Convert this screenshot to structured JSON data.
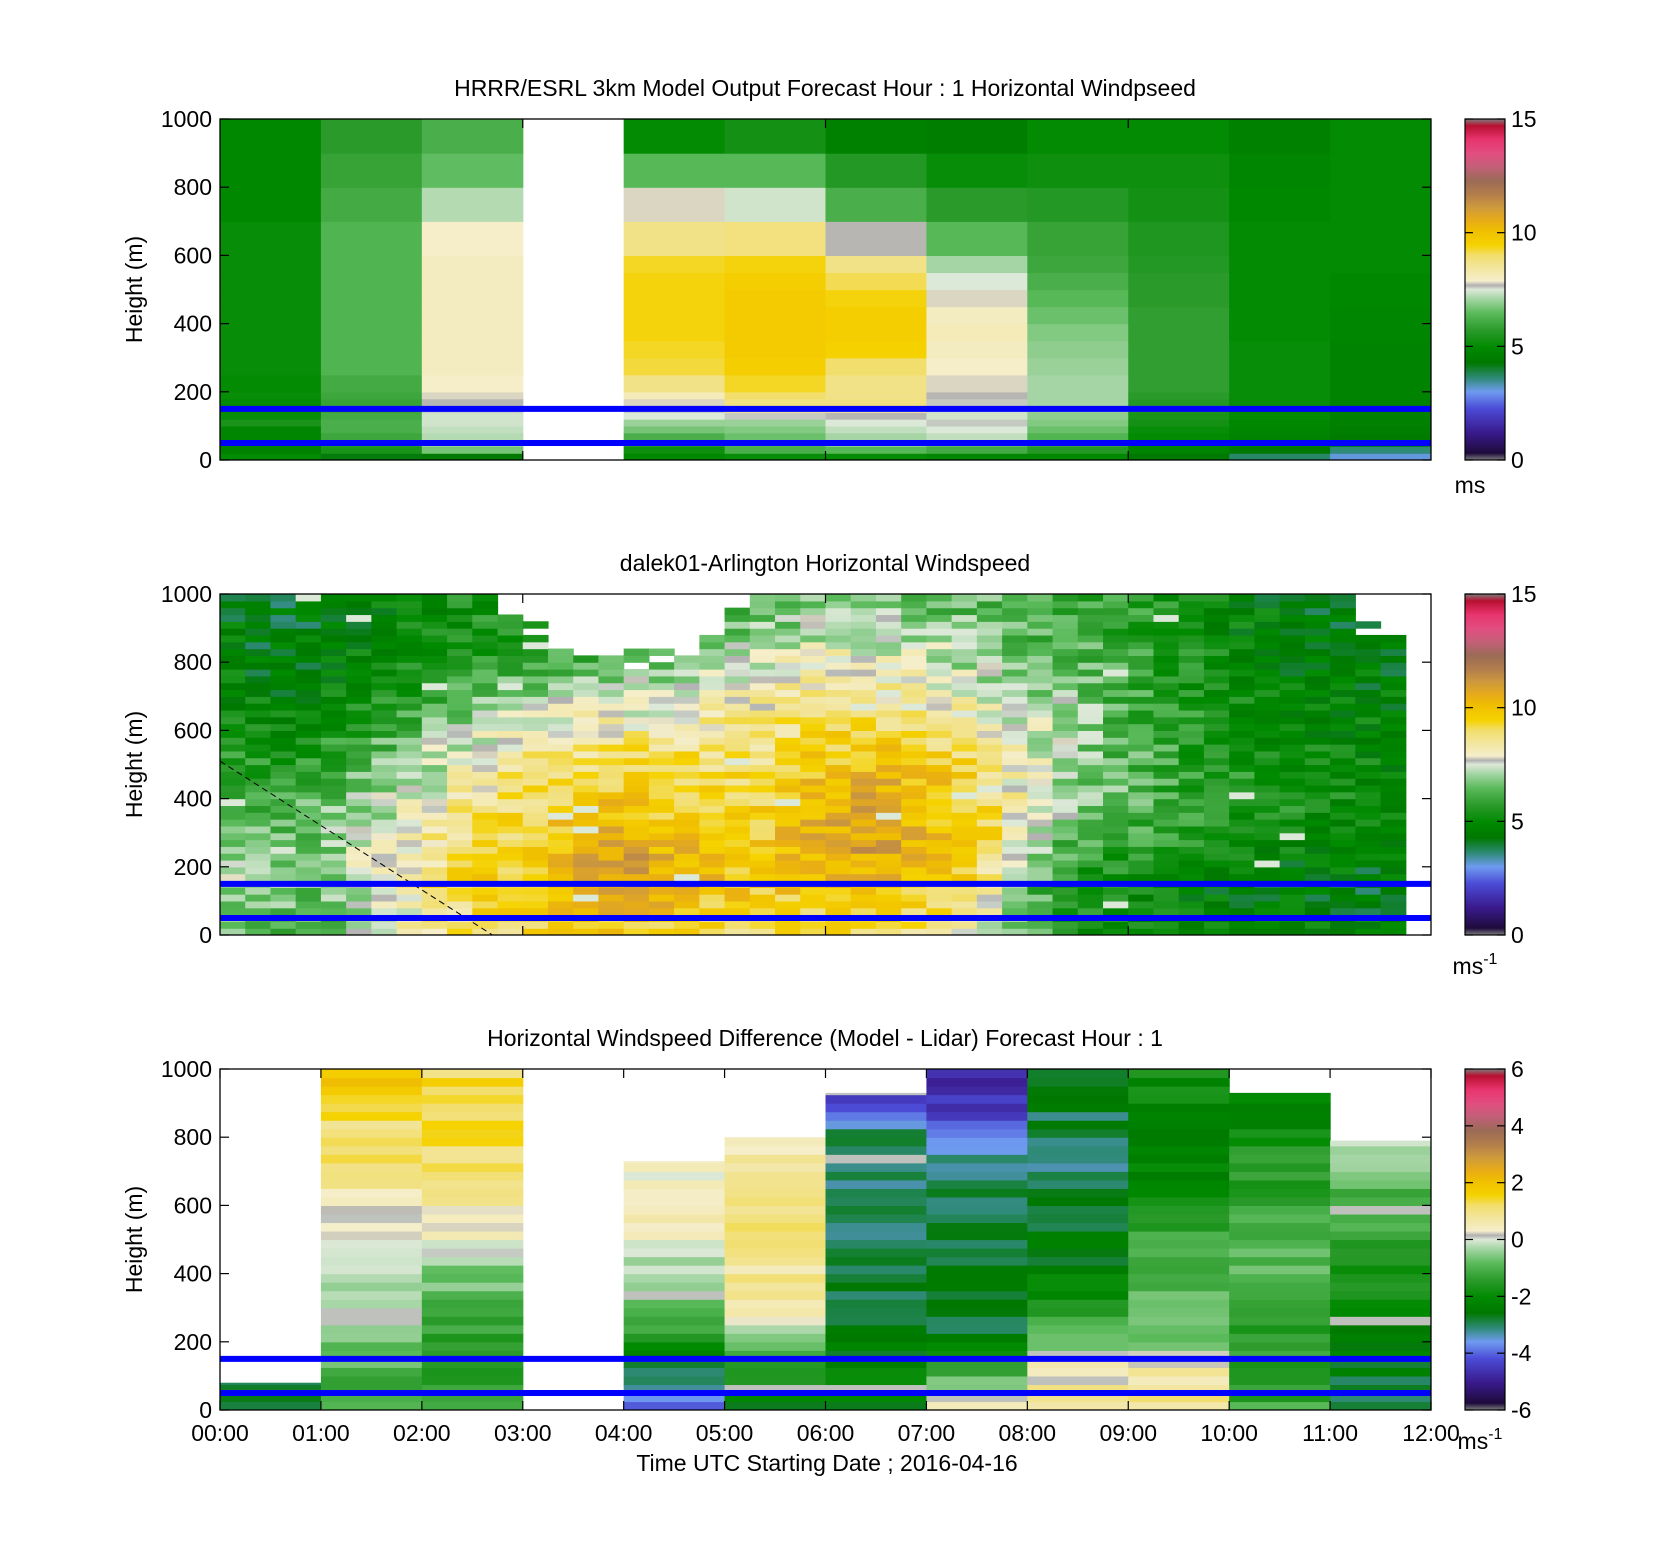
{
  "figure": {
    "xlabel": "Time UTC  Starting Date ; 2016-04-16",
    "x_tick_labels": [
      "00:00",
      "01:00",
      "02:00",
      "03:00",
      "04:00",
      "05:00",
      "06:00",
      "07:00",
      "08:00",
      "09:00",
      "10:00",
      "11:00",
      "12:00"
    ]
  },
  "chart_data": [
    {
      "type": "heatmap",
      "title": "HRRR/ESRL 3km Model Output   Forecast Hour : 1 Horizontal Windpseed",
      "ylabel": "Height (m)",
      "xlim": [
        0,
        12
      ],
      "ylim": [
        0,
        1000
      ],
      "y_ticks": [
        0,
        200,
        400,
        600,
        800,
        1000
      ],
      "x_ticks_shown": [
        3,
        6,
        9
      ],
      "x_tick_labels_shown": false,
      "colorbar": {
        "min": 0,
        "max": 15,
        "ticks": [
          0,
          5,
          10,
          15
        ],
        "label": "ms",
        "label_sup": ""
      },
      "reference_lines_m": [
        50,
        150
      ],
      "reference_line_color": "#0000ff",
      "levels_m": [
        0,
        20,
        40,
        60,
        80,
        100,
        120,
        140,
        160,
        180,
        200,
        250,
        300,
        350,
        400,
        450,
        500,
        550,
        600,
        700,
        800,
        900,
        1000
      ],
      "hour_columns": [
        {
          "hour": 0,
          "values": [
            5.0,
            4.6,
            4.7,
            4.8,
            4.8,
            5.4,
            5.1,
            5.0,
            5.0,
            5.1,
            5.0,
            5.1,
            5.1,
            5.1,
            5.1,
            5.1,
            5.1,
            5.1,
            5.1,
            4.9,
            4.9,
            4.9
          ]
        },
        {
          "hour": 1,
          "values": [
            4.2,
            5.4,
            5.6,
            6.0,
            6.2,
            6.2,
            6.1,
            5.9,
            5.9,
            6.0,
            6.1,
            6.3,
            6.3,
            6.3,
            6.3,
            6.3,
            6.3,
            6.3,
            6.3,
            6.1,
            5.9,
            5.7
          ]
        },
        {
          "hour": 2,
          "values": [
            4.3,
            6.7,
            7.0,
            7.2,
            7.3,
            7.4,
            7.4,
            7.6,
            7.7,
            7.8,
            7.9,
            8.0,
            8.0,
            8.0,
            8.0,
            8.0,
            8.0,
            8.0,
            7.9,
            7.2,
            6.5,
            6.2
          ]
        },
        {
          "hour": 3,
          "values": null
        },
        {
          "hour": 4,
          "values": [
            4.9,
            5.2,
            5.6,
            6.2,
            6.7,
            7.0,
            7.5,
            7.6,
            7.8,
            8.1,
            8.7,
            9.2,
            9.3,
            9.4,
            9.4,
            9.4,
            9.4,
            9.3,
            8.7,
            7.8,
            6.4,
            5.0
          ]
        },
        {
          "hour": 5,
          "values": [
            5.1,
            6.2,
            6.3,
            6.6,
            6.8,
            7.0,
            7.6,
            8.6,
            8.8,
            9.0,
            9.3,
            9.6,
            9.7,
            9.7,
            9.7,
            9.7,
            9.6,
            9.4,
            8.8,
            7.4,
            6.4,
            5.3
          ]
        },
        {
          "hour": 6,
          "values": [
            5.0,
            6.4,
            6.9,
            7.1,
            7.3,
            7.5,
            7.7,
            8.4,
            8.8,
            8.7,
            8.7,
            9.0,
            9.5,
            9.6,
            9.6,
            9.4,
            9.1,
            8.7,
            7.7,
            6.2,
            5.6,
            4.6
          ]
        },
        {
          "hour": 7,
          "values": [
            4.8,
            6.1,
            6.5,
            7.3,
            7.5,
            7.6,
            7.4,
            7.4,
            7.6,
            7.7,
            7.8,
            7.9,
            8.0,
            8.1,
            8.0,
            7.8,
            7.5,
            7.1,
            6.4,
            5.7,
            5.1,
            4.5
          ]
        },
        {
          "hour": 8,
          "values": [
            4.9,
            5.6,
            5.9,
            6.3,
            6.6,
            6.8,
            6.9,
            7.0,
            7.1,
            7.1,
            7.1,
            7.0,
            6.9,
            6.8,
            6.6,
            6.4,
            6.2,
            6.0,
            5.9,
            5.6,
            5.2,
            5.0
          ]
        },
        {
          "hour": 9,
          "values": [
            4.3,
            4.7,
            4.9,
            5.0,
            5.1,
            5.3,
            5.4,
            5.5,
            5.6,
            5.7,
            5.8,
            5.8,
            5.8,
            5.8,
            5.8,
            5.7,
            5.7,
            5.6,
            5.5,
            5.3,
            5.2,
            5.0
          ]
        },
        {
          "hour": 10,
          "values": [
            3.7,
            4.3,
            4.6,
            4.7,
            4.8,
            4.9,
            5.0,
            5.0,
            5.1,
            5.1,
            5.1,
            5.1,
            5.1,
            5.0,
            5.0,
            5.0,
            5.0,
            5.0,
            5.0,
            4.9,
            4.8,
            4.6
          ]
        },
        {
          "hour": 11,
          "values": [
            3.1,
            3.6,
            4.1,
            4.4,
            4.5,
            4.6,
            4.6,
            4.6,
            4.6,
            4.7,
            4.7,
            4.7,
            4.7,
            4.8,
            4.8,
            4.9,
            4.9,
            5.0,
            5.0,
            5.0,
            5.0,
            5.0
          ]
        }
      ]
    },
    {
      "type": "heatmap",
      "title": "dalek01-Arlington  Horizontal Windspeed",
      "ylabel": "Height (m)",
      "xlim": [
        0,
        12
      ],
      "ylim": [
        0,
        1000
      ],
      "y_ticks": [
        0,
        200,
        400,
        600,
        800,
        1000
      ],
      "x_ticks_shown": [
        3,
        6,
        9
      ],
      "x_tick_labels_shown": false,
      "colorbar": {
        "min": 0,
        "max": 15,
        "ticks": [
          0,
          5,
          10,
          15
        ],
        "label": "ms",
        "label_sup": "-1"
      },
      "reference_lines_m": [
        50,
        150
      ],
      "reference_line_color": "#0000ff",
      "time_bin_hours": 0.25,
      "height_bin_m": 20,
      "profile_knots_hour": [
        0.0,
        0.5,
        1.0,
        1.5,
        2.0,
        2.5,
        3.0,
        3.5,
        4.0,
        4.5,
        5.0,
        5.5,
        6.0,
        6.5,
        7.0,
        7.5,
        8.0,
        8.5,
        9.0,
        9.5,
        10.0,
        10.5,
        11.0,
        11.5
      ],
      "profile_knots_m": [
        50,
        150,
        250,
        350,
        450,
        550,
        650,
        750,
        850,
        950
      ],
      "profile_values": [
        [
          7.0,
          7.2,
          7.0,
          6.4,
          6.0,
          5.5,
          5.2,
          4.9,
          4.7,
          4.5
        ],
        [
          6.4,
          7.0,
          6.9,
          6.3,
          5.8,
          5.2,
          4.8,
          4.5,
          4.3,
          4.2
        ],
        [
          6.0,
          6.6,
          6.7,
          6.6,
          6.2,
          5.7,
          5.1,
          4.7,
          4.5,
          4.4
        ],
        [
          7.2,
          7.9,
          7.6,
          7.2,
          6.8,
          6.2,
          5.6,
          5.1,
          4.8,
          4.7
        ],
        [
          8.2,
          8.6,
          8.3,
          7.8,
          7.4,
          6.9,
          6.1,
          5.5,
          5.2,
          5.0
        ],
        [
          9.0,
          9.3,
          9.1,
          8.8,
          8.3,
          7.7,
          6.9,
          6.0,
          5.5,
          5.3
        ],
        [
          9.3,
          9.7,
          9.5,
          9.2,
          8.8,
          8.2,
          7.4,
          6.5,
          5.8,
          5.5
        ],
        [
          9.6,
          10.5,
          10.3,
          9.8,
          9.2,
          8.6,
          7.7,
          6.7,
          6.0,
          5.6
        ],
        [
          9.8,
          10.9,
          10.7,
          10.2,
          9.5,
          8.9,
          7.8,
          6.9,
          6.1,
          5.7
        ],
        [
          9.5,
          10.6,
          10.2,
          9.6,
          9.2,
          8.8,
          8.0,
          7.2,
          6.4,
          5.9
        ],
        [
          9.2,
          10.0,
          9.7,
          9.4,
          9.1,
          8.8,
          8.3,
          7.6,
          6.8,
          6.2
        ],
        [
          9.1,
          9.8,
          9.8,
          9.6,
          9.2,
          8.9,
          8.5,
          8.0,
          7.3,
          6.6
        ],
        [
          9.3,
          10.3,
          10.6,
          10.4,
          10.2,
          9.5,
          8.9,
          8.2,
          7.6,
          6.9
        ],
        [
          9.2,
          10.2,
          10.7,
          10.6,
          10.4,
          9.7,
          9.0,
          8.2,
          7.6,
          6.9
        ],
        [
          8.8,
          9.7,
          10.2,
          10.1,
          9.8,
          9.2,
          8.6,
          7.9,
          7.3,
          6.7
        ],
        [
          8.0,
          9.1,
          9.7,
          9.6,
          9.4,
          8.8,
          8.1,
          7.4,
          6.8,
          6.4
        ],
        [
          6.3,
          6.5,
          7.0,
          7.5,
          7.7,
          7.6,
          7.3,
          6.9,
          6.5,
          6.2
        ],
        [
          5.4,
          5.4,
          6.1,
          6.7,
          6.9,
          7.0,
          6.9,
          6.6,
          6.3,
          6.1
        ],
        [
          5.1,
          5.0,
          5.7,
          6.3,
          6.4,
          6.3,
          6.2,
          6.0,
          5.9,
          5.8
        ],
        [
          4.9,
          4.7,
          5.3,
          5.8,
          5.9,
          5.8,
          5.7,
          5.5,
          5.4,
          5.3
        ],
        [
          4.8,
          4.5,
          5.1,
          5.5,
          5.6,
          5.5,
          5.3,
          5.1,
          4.9,
          4.8
        ],
        [
          4.7,
          4.4,
          4.9,
          5.3,
          5.4,
          5.2,
          5.0,
          4.8,
          4.6,
          4.6
        ],
        [
          4.6,
          4.4,
          4.8,
          5.2,
          5.2,
          5.0,
          4.8,
          4.6,
          4.5,
          4.4
        ],
        [
          4.5,
          4.3,
          4.7,
          5.0,
          5.0,
          4.9,
          4.7,
          4.5,
          4.4,
          4.3
        ]
      ],
      "data_top_m": [
        1000,
        1000,
        1000,
        1000,
        1000,
        1000,
        1000,
        1000,
        1000,
        1000,
        1000,
        960,
        930,
        880,
        850,
        840,
        830,
        830,
        840,
        880,
        950,
        1000,
        1000,
        1000,
        1000,
        1000,
        1000,
        1000,
        1000,
        1000,
        1000,
        1000,
        1000,
        1000,
        1000,
        1000,
        1000,
        1000,
        1000,
        1000,
        1000,
        1000,
        1000,
        1000,
        1000,
        920,
        880,
        860
      ],
      "data_end_hour": 11.75,
      "dashed_line": {
        "from": [
          0.0,
          510
        ],
        "to": [
          2.7,
          0
        ]
      }
    },
    {
      "type": "heatmap",
      "title": "Horizontal Windspeed Difference (Model - Lidar) Forecast Hour : 1",
      "ylabel": "Height (m)",
      "xlabel": "Time UTC  Starting Date ; 2016-04-16",
      "xlim": [
        0,
        12
      ],
      "ylim": [
        0,
        1000
      ],
      "y_ticks": [
        0,
        200,
        400,
        600,
        800,
        1000
      ],
      "x_ticks_shown": [
        0,
        1,
        2,
        3,
        4,
        5,
        6,
        7,
        8,
        9,
        10,
        11,
        12
      ],
      "x_tick_labels_shown": true,
      "colorbar": {
        "min": -6,
        "max": 6,
        "ticks": [
          -6,
          -4,
          -2,
          0,
          2,
          4,
          6
        ],
        "label": "ms",
        "label_sup": "-1"
      },
      "reference_lines_m": [
        50,
        150
      ],
      "reference_line_color": "#0000ff",
      "hour_columns": [
        {
          "hour": 0,
          "top_m": 80,
          "values": [
            -2.6,
            -2.8,
            -2.6,
            -2.6,
            -2.6,
            -2.6,
            -2.6,
            -2.6,
            -2.6,
            -2.6,
            -2.6
          ]
        },
        {
          "hour": 1,
          "top_m": 1000,
          "values": [
            -1.0,
            -1.0,
            -0.8,
            -0.6,
            -0.3,
            0.3,
            0.6,
            0.9,
            1.1,
            1.6,
            2.0
          ]
        },
        {
          "hour": 2,
          "top_m": 1000,
          "values": [
            -1.4,
            -1.6,
            -1.4,
            -1.0,
            -0.5,
            0.2,
            0.8,
            1.1,
            1.3,
            1.3,
            1.3
          ]
        },
        {
          "hour": 3,
          "top_m": 0,
          "values": null
        },
        {
          "hour": 4,
          "top_m": 730,
          "values": [
            -4.2,
            -2.8,
            -1.6,
            -0.8,
            -0.3,
            0.3,
            0.5,
            0.3,
            0.0
          ]
        },
        {
          "hour": 5,
          "top_m": 800,
          "values": [
            -2.8,
            -1.6,
            -0.5,
            0.5,
            0.8,
            0.9,
            0.9,
            0.8,
            0.4
          ]
        },
        {
          "hour": 6,
          "top_m": 930,
          "values": [
            -2.4,
            -2.2,
            -2.6,
            -2.8,
            -2.9,
            -3.0,
            -3.0,
            -3.0,
            -3.0,
            -4.6
          ]
        },
        {
          "hour": 7,
          "top_m": 1000,
          "values": [
            0.2,
            -1.2,
            -2.6,
            -2.8,
            -2.9,
            -3.0,
            -3.0,
            -3.0,
            -4.1,
            -4.6,
            -4.6
          ]
        },
        {
          "hour": 8,
          "top_m": 1000,
          "values": [
            1.0,
            0.6,
            -1.0,
            -1.8,
            -2.4,
            -2.6,
            -2.8,
            -3.0,
            -2.9,
            -2.8,
            -2.8
          ]
        },
        {
          "hour": 9,
          "top_m": 1000,
          "values": [
            1.0,
            0.6,
            -0.6,
            -0.9,
            -1.0,
            -1.3,
            -1.7,
            -2.2,
            -2.4,
            -2.1,
            -1.8
          ]
        },
        {
          "hour": 10,
          "top_m": 930,
          "values": [
            -1.2,
            -1.3,
            -1.4,
            -1.3,
            -0.7,
            -1.0,
            -1.2,
            -1.5,
            -1.9,
            -2.2
          ]
        },
        {
          "hour": 11,
          "top_m": 790,
          "values": [
            -2.8,
            -2.6,
            -2.4,
            -2.0,
            -1.6,
            -1.3,
            -1.0,
            -0.7,
            -0.2
          ]
        }
      ],
      "levels_m": [
        0,
        100,
        200,
        300,
        400,
        500,
        600,
        700,
        800,
        900,
        1000
      ]
    }
  ],
  "colormap": {
    "stops": [
      [
        0.0,
        "#7d7d7d"
      ],
      [
        0.02,
        "#1e0b3c"
      ],
      [
        0.08,
        "#3a1a8c"
      ],
      [
        0.15,
        "#4b4bd6"
      ],
      [
        0.2,
        "#6f9bf0"
      ],
      [
        0.24,
        "#2f8a78"
      ],
      [
        0.285,
        "#007800"
      ],
      [
        0.33,
        "#008a00"
      ],
      [
        0.38,
        "#2a9a2a"
      ],
      [
        0.43,
        "#5aba5a"
      ],
      [
        0.47,
        "#9fd39f"
      ],
      [
        0.5,
        "#dde9d8"
      ],
      [
        0.512,
        "#b0b0b0"
      ],
      [
        0.525,
        "#f5eecb"
      ],
      [
        0.56,
        "#f2e6a2"
      ],
      [
        0.6,
        "#f2de6c"
      ],
      [
        0.63,
        "#f5d200"
      ],
      [
        0.67,
        "#f0c000"
      ],
      [
        0.7,
        "#e9ad15"
      ],
      [
        0.74,
        "#cf9a3c"
      ],
      [
        0.78,
        "#b27d4c"
      ],
      [
        0.82,
        "#9b6a56"
      ],
      [
        0.86,
        "#c35f78"
      ],
      [
        0.9,
        "#e24d80"
      ],
      [
        0.94,
        "#e8346e"
      ],
      [
        0.98,
        "#b81030"
      ],
      [
        1.0,
        "#7d7d7d"
      ]
    ]
  }
}
